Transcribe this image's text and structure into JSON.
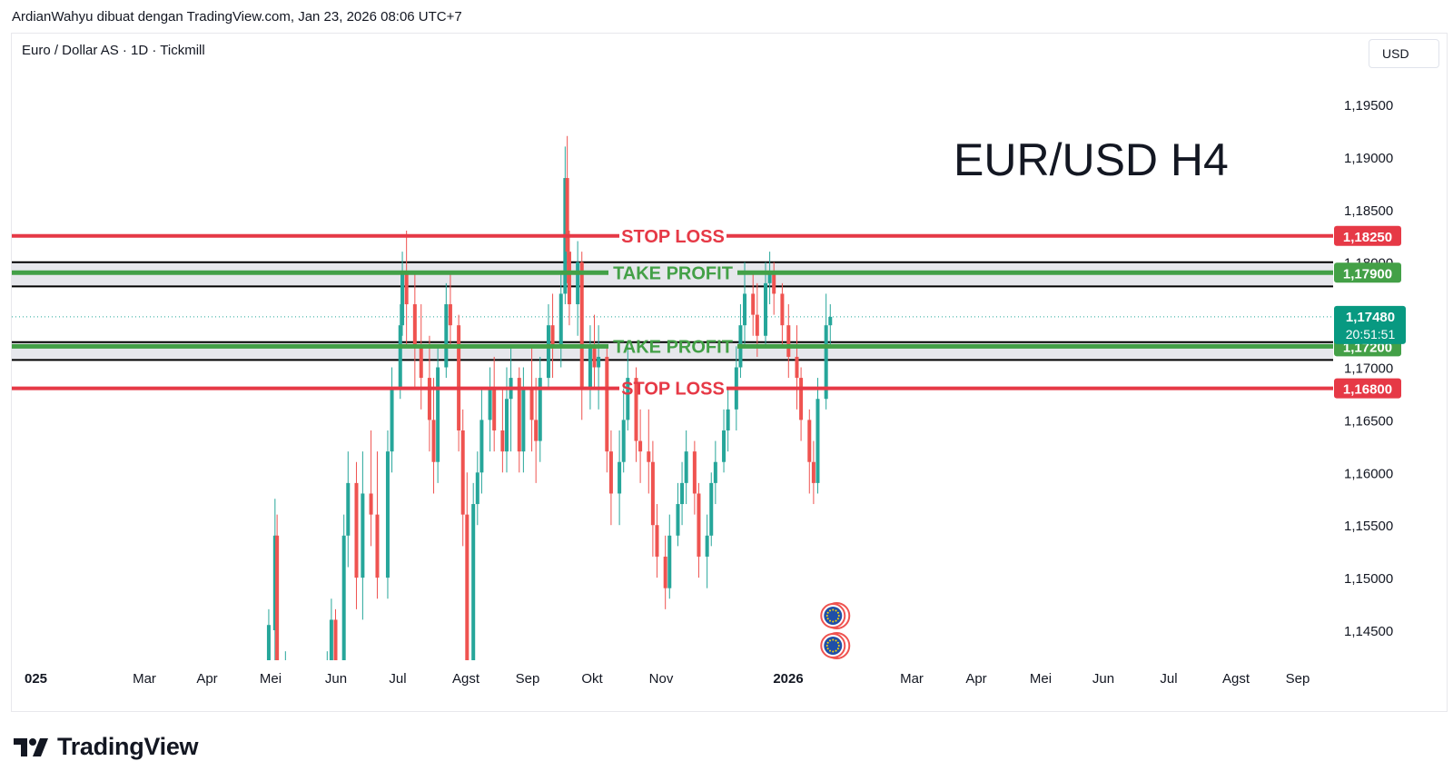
{
  "attribution": "ArdianWahyu dibuat dengan TradingView.com, Jan 23, 2026 08:06 UTC+7",
  "symbol_title": "Euro / Dollar AS · 1D · Tickmill",
  "currency": "USD",
  "brand": {
    "name": "TradingView",
    "logo_icon": "tradingview-logo-icon"
  },
  "colors": {
    "up": "#26a69a",
    "down": "#ef5350",
    "stop_loss": "#e63946",
    "take_profit": "#43a047",
    "zone_fill": "#d1d4dc",
    "text": "#131722"
  },
  "chart_data": {
    "type": "candlestick",
    "title": "EUR/USD H4",
    "y_range": [
      1.1425,
      1.1975
    ],
    "y_ticks": [
      "1,19500",
      "1,19000",
      "1,18500",
      "1,18000",
      "1,17000",
      "1,16500",
      "1,16000",
      "1,15500",
      "1,15000",
      "1,14500"
    ],
    "x_ticks": [
      "025",
      "Mar",
      "Apr",
      "Mei",
      "Jun",
      "Jul",
      "Agst",
      "Sep",
      "Okt",
      "Nov",
      "2026",
      "Mar",
      "Apr",
      "Mei",
      "Jun",
      "Jul",
      "Agst",
      "Sep"
    ],
    "levels": [
      {
        "label": "STOP LOSS",
        "price": 1.1825,
        "price_label": "1,18250",
        "kind": "stop_loss"
      },
      {
        "label": "TAKE PROFIT",
        "price": 1.179,
        "price_label": "1,17900",
        "kind": "take_profit"
      },
      {
        "label": "TAKE PROFIT",
        "price": 1.172,
        "price_label": "1,17200",
        "kind": "take_profit"
      },
      {
        "label": "STOP LOSS",
        "price": 1.168,
        "price_label": "1,16800",
        "kind": "stop_loss"
      }
    ],
    "zones": [
      [
        1.1777,
        1.18
      ],
      [
        1.1707,
        1.1724
      ]
    ],
    "last_price": {
      "price": 1.1748,
      "label": "1,17480",
      "countdown": "20:51:51"
    },
    "candles": [
      {
        "d": "2025-04-28",
        "o": 1.14,
        "h": 1.147,
        "l": 1.138,
        "c": 1.1455
      },
      {
        "d": "2025-05-01",
        "o": 1.145,
        "h": 1.1575,
        "l": 1.141,
        "c": 1.154
      },
      {
        "d": "2025-05-02",
        "o": 1.154,
        "h": 1.156,
        "l": 1.138,
        "c": 1.14
      },
      {
        "d": "2025-05-06",
        "o": 1.138,
        "h": 1.143,
        "l": 1.135,
        "c": 1.142
      },
      {
        "d": "2025-05-26",
        "o": 1.138,
        "h": 1.143,
        "l": 1.135,
        "c": 1.141
      },
      {
        "d": "2025-05-28",
        "o": 1.141,
        "h": 1.148,
        "l": 1.139,
        "c": 1.146
      },
      {
        "d": "2025-05-30",
        "o": 1.146,
        "h": 1.147,
        "l": 1.138,
        "c": 1.14
      },
      {
        "d": "2025-06-03",
        "o": 1.14,
        "h": 1.156,
        "l": 1.139,
        "c": 1.154
      },
      {
        "d": "2025-06-05",
        "o": 1.154,
        "h": 1.162,
        "l": 1.151,
        "c": 1.159
      },
      {
        "d": "2025-06-09",
        "o": 1.159,
        "h": 1.161,
        "l": 1.147,
        "c": 1.15
      },
      {
        "d": "2025-06-12",
        "o": 1.15,
        "h": 1.162,
        "l": 1.146,
        "c": 1.158
      },
      {
        "d": "2025-06-16",
        "o": 1.158,
        "h": 1.164,
        "l": 1.153,
        "c": 1.156
      },
      {
        "d": "2025-06-19",
        "o": 1.156,
        "h": 1.162,
        "l": 1.148,
        "c": 1.15
      },
      {
        "d": "2025-06-24",
        "o": 1.15,
        "h": 1.164,
        "l": 1.148,
        "c": 1.162
      },
      {
        "d": "2025-06-26",
        "o": 1.162,
        "h": 1.17,
        "l": 1.16,
        "c": 1.168
      },
      {
        "d": "2025-06-30",
        "o": 1.168,
        "h": 1.176,
        "l": 1.167,
        "c": 1.174
      },
      {
        "d": "2025-07-01",
        "o": 1.174,
        "h": 1.181,
        "l": 1.173,
        "c": 1.179
      },
      {
        "d": "2025-07-03",
        "o": 1.179,
        "h": 1.183,
        "l": 1.172,
        "c": 1.176
      },
      {
        "d": "2025-07-07",
        "o": 1.176,
        "h": 1.179,
        "l": 1.168,
        "c": 1.172
      },
      {
        "d": "2025-07-10",
        "o": 1.172,
        "h": 1.176,
        "l": 1.166,
        "c": 1.169
      },
      {
        "d": "2025-07-14",
        "o": 1.169,
        "h": 1.173,
        "l": 1.162,
        "c": 1.165
      },
      {
        "d": "2025-07-16",
        "o": 1.165,
        "h": 1.169,
        "l": 1.158,
        "c": 1.161
      },
      {
        "d": "2025-07-18",
        "o": 1.161,
        "h": 1.172,
        "l": 1.159,
        "c": 1.17
      },
      {
        "d": "2025-07-22",
        "o": 1.17,
        "h": 1.178,
        "l": 1.169,
        "c": 1.176
      },
      {
        "d": "2025-07-24",
        "o": 1.176,
        "h": 1.179,
        "l": 1.172,
        "c": 1.174
      },
      {
        "d": "2025-07-28",
        "o": 1.174,
        "h": 1.175,
        "l": 1.162,
        "c": 1.164
      },
      {
        "d": "2025-07-30",
        "o": 1.164,
        "h": 1.166,
        "l": 1.153,
        "c": 1.156
      },
      {
        "d": "2025-08-01",
        "o": 1.156,
        "h": 1.16,
        "l": 1.139,
        "c": 1.142
      },
      {
        "d": "2025-08-04",
        "o": 1.142,
        "h": 1.159,
        "l": 1.141,
        "c": 1.157
      },
      {
        "d": "2025-08-06",
        "o": 1.157,
        "h": 1.162,
        "l": 1.155,
        "c": 1.16
      },
      {
        "d": "2025-08-08",
        "o": 1.16,
        "h": 1.168,
        "l": 1.158,
        "c": 1.165
      },
      {
        "d": "2025-08-12",
        "o": 1.165,
        "h": 1.17,
        "l": 1.162,
        "c": 1.168
      },
      {
        "d": "2025-08-14",
        "o": 1.168,
        "h": 1.171,
        "l": 1.162,
        "c": 1.164
      },
      {
        "d": "2025-08-18",
        "o": 1.164,
        "h": 1.168,
        "l": 1.16,
        "c": 1.162
      },
      {
        "d": "2025-08-20",
        "o": 1.162,
        "h": 1.17,
        "l": 1.16,
        "c": 1.167
      },
      {
        "d": "2025-08-22",
        "o": 1.167,
        "h": 1.172,
        "l": 1.162,
        "c": 1.169
      },
      {
        "d": "2025-08-26",
        "o": 1.169,
        "h": 1.17,
        "l": 1.16,
        "c": 1.162
      },
      {
        "d": "2025-08-28",
        "o": 1.162,
        "h": 1.17,
        "l": 1.16,
        "c": 1.168
      },
      {
        "d": "2025-09-01",
        "o": 1.168,
        "h": 1.172,
        "l": 1.162,
        "c": 1.165
      },
      {
        "d": "2025-09-03",
        "o": 1.165,
        "h": 1.169,
        "l": 1.159,
        "c": 1.163
      },
      {
        "d": "2025-09-05",
        "o": 1.163,
        "h": 1.171,
        "l": 1.161,
        "c": 1.169
      },
      {
        "d": "2025-09-09",
        "o": 1.169,
        "h": 1.176,
        "l": 1.168,
        "c": 1.174
      },
      {
        "d": "2025-09-11",
        "o": 1.174,
        "h": 1.177,
        "l": 1.169,
        "c": 1.172
      },
      {
        "d": "2025-09-15",
        "o": 1.172,
        "h": 1.179,
        "l": 1.17,
        "c": 1.177
      },
      {
        "d": "2025-09-17",
        "o": 1.177,
        "h": 1.191,
        "l": 1.176,
        "c": 1.188
      },
      {
        "d": "2025-09-18",
        "o": 1.188,
        "h": 1.192,
        "l": 1.178,
        "c": 1.181
      },
      {
        "d": "2025-09-19",
        "o": 1.181,
        "h": 1.183,
        "l": 1.174,
        "c": 1.176
      },
      {
        "d": "2025-09-23",
        "o": 1.176,
        "h": 1.182,
        "l": 1.173,
        "c": 1.18
      },
      {
        "d": "2025-09-25",
        "o": 1.18,
        "h": 1.181,
        "l": 1.165,
        "c": 1.168
      },
      {
        "d": "2025-09-29",
        "o": 1.168,
        "h": 1.174,
        "l": 1.166,
        "c": 1.172
      },
      {
        "d": "2025-10-01",
        "o": 1.172,
        "h": 1.175,
        "l": 1.168,
        "c": 1.17
      },
      {
        "d": "2025-10-03",
        "o": 1.17,
        "h": 1.174,
        "l": 1.166,
        "c": 1.171
      },
      {
        "d": "2025-10-07",
        "o": 1.171,
        "h": 1.172,
        "l": 1.16,
        "c": 1.162
      },
      {
        "d": "2025-10-09",
        "o": 1.162,
        "h": 1.164,
        "l": 1.155,
        "c": 1.158
      },
      {
        "d": "2025-10-13",
        "o": 1.158,
        "h": 1.164,
        "l": 1.155,
        "c": 1.161
      },
      {
        "d": "2025-10-15",
        "o": 1.161,
        "h": 1.168,
        "l": 1.16,
        "c": 1.165
      },
      {
        "d": "2025-10-17",
        "o": 1.165,
        "h": 1.172,
        "l": 1.164,
        "c": 1.169
      },
      {
        "d": "2025-10-21",
        "o": 1.169,
        "h": 1.17,
        "l": 1.161,
        "c": 1.163
      },
      {
        "d": "2025-10-23",
        "o": 1.163,
        "h": 1.166,
        "l": 1.159,
        "c": 1.162
      },
      {
        "d": "2025-10-27",
        "o": 1.162,
        "h": 1.166,
        "l": 1.158,
        "c": 1.161
      },
      {
        "d": "2025-10-29",
        "o": 1.161,
        "h": 1.163,
        "l": 1.152,
        "c": 1.155
      },
      {
        "d": "2025-10-31",
        "o": 1.155,
        "h": 1.157,
        "l": 1.15,
        "c": 1.152
      },
      {
        "d": "2025-11-04",
        "o": 1.152,
        "h": 1.154,
        "l": 1.147,
        "c": 1.149
      },
      {
        "d": "2025-11-06",
        "o": 1.149,
        "h": 1.156,
        "l": 1.148,
        "c": 1.154
      },
      {
        "d": "2025-11-10",
        "o": 1.154,
        "h": 1.159,
        "l": 1.153,
        "c": 1.157
      },
      {
        "d": "2025-11-12",
        "o": 1.157,
        "h": 1.161,
        "l": 1.155,
        "c": 1.159
      },
      {
        "d": "2025-11-14",
        "o": 1.159,
        "h": 1.164,
        "l": 1.157,
        "c": 1.162
      },
      {
        "d": "2025-11-18",
        "o": 1.162,
        "h": 1.163,
        "l": 1.156,
        "c": 1.158
      },
      {
        "d": "2025-11-20",
        "o": 1.158,
        "h": 1.159,
        "l": 1.15,
        "c": 1.152
      },
      {
        "d": "2025-11-24",
        "o": 1.152,
        "h": 1.156,
        "l": 1.149,
        "c": 1.154
      },
      {
        "d": "2025-11-26",
        "o": 1.154,
        "h": 1.16,
        "l": 1.153,
        "c": 1.159
      },
      {
        "d": "2025-11-28",
        "o": 1.159,
        "h": 1.163,
        "l": 1.157,
        "c": 1.161
      },
      {
        "d": "2025-12-02",
        "o": 1.161,
        "h": 1.166,
        "l": 1.16,
        "c": 1.164
      },
      {
        "d": "2025-12-04",
        "o": 1.164,
        "h": 1.168,
        "l": 1.162,
        "c": 1.166
      },
      {
        "d": "2025-12-08",
        "o": 1.166,
        "h": 1.172,
        "l": 1.164,
        "c": 1.17
      },
      {
        "d": "2025-12-10",
        "o": 1.17,
        "h": 1.176,
        "l": 1.169,
        "c": 1.174
      },
      {
        "d": "2025-12-12",
        "o": 1.174,
        "h": 1.18,
        "l": 1.172,
        "c": 1.177
      },
      {
        "d": "2025-12-16",
        "o": 1.177,
        "h": 1.179,
        "l": 1.173,
        "c": 1.175
      },
      {
        "d": "2025-12-18",
        "o": 1.175,
        "h": 1.178,
        "l": 1.171,
        "c": 1.173
      },
      {
        "d": "2025-12-22",
        "o": 1.173,
        "h": 1.18,
        "l": 1.172,
        "c": 1.178
      },
      {
        "d": "2025-12-24",
        "o": 1.178,
        "h": 1.181,
        "l": 1.176,
        "c": 1.179
      },
      {
        "d": "2025-12-26",
        "o": 1.179,
        "h": 1.18,
        "l": 1.175,
        "c": 1.177
      },
      {
        "d": "2025-12-30",
        "o": 1.177,
        "h": 1.178,
        "l": 1.172,
        "c": 1.174
      },
      {
        "d": "2026-01-02",
        "o": 1.174,
        "h": 1.176,
        "l": 1.169,
        "c": 1.171
      },
      {
        "d": "2026-01-06",
        "o": 1.171,
        "h": 1.174,
        "l": 1.166,
        "c": 1.169
      },
      {
        "d": "2026-01-08",
        "o": 1.169,
        "h": 1.17,
        "l": 1.163,
        "c": 1.165
      },
      {
        "d": "2026-01-12",
        "o": 1.165,
        "h": 1.166,
        "l": 1.158,
        "c": 1.161
      },
      {
        "d": "2026-01-14",
        "o": 1.161,
        "h": 1.163,
        "l": 1.157,
        "c": 1.159
      },
      {
        "d": "2026-01-16",
        "o": 1.159,
        "h": 1.169,
        "l": 1.158,
        "c": 1.167
      },
      {
        "d": "2026-01-20",
        "o": 1.167,
        "h": 1.177,
        "l": 1.166,
        "c": 1.174
      },
      {
        "d": "2026-01-22",
        "o": 1.174,
        "h": 1.176,
        "l": 1.172,
        "c": 1.1748
      }
    ]
  },
  "event_markers": [
    {
      "icon": "eu-flag-icon",
      "date": "2026-01-22"
    },
    {
      "icon": "eu-flag-icon",
      "date": "2026-01-22"
    }
  ]
}
